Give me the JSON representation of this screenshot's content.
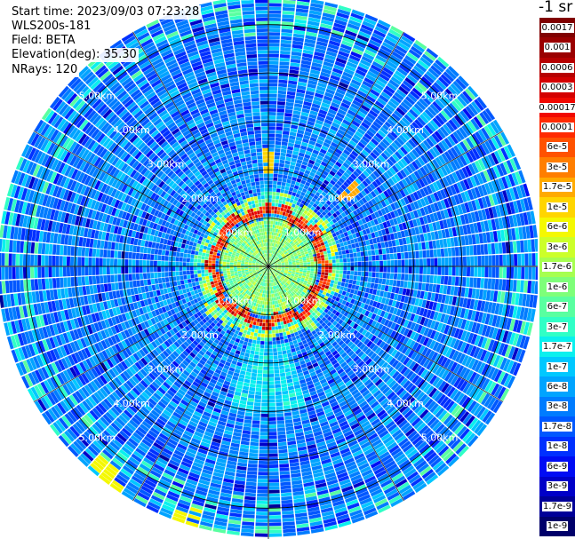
{
  "header": {
    "start_time": "Start time: 2023/09/03 07:23:28",
    "instrument": "WLS200s-181",
    "field": "Field: BETA",
    "elevation": "Elevation(deg): 35.30",
    "nrays": "NRays: 120"
  },
  "colorbar": {
    "unit_label": "-1 sr",
    "levels": [
      {
        "label": "0.0017",
        "color": "#800000"
      },
      {
        "label": "0.001",
        "color": "#9a0000"
      },
      {
        "label": "0.0006",
        "color": "#b60000"
      },
      {
        "label": "0.0003",
        "color": "#d40000"
      },
      {
        "label": "0.00017",
        "color": "#f10800"
      },
      {
        "label": "0.0001",
        "color": "#ff2a00"
      },
      {
        "label": "6e-5",
        "color": "#ff5200"
      },
      {
        "label": "3e-5",
        "color": "#ff7e00"
      },
      {
        "label": "1.7e-5",
        "color": "#ffaa00"
      },
      {
        "label": "1e-5",
        "color": "#ffd500"
      },
      {
        "label": "6e-6",
        "color": "#f4f802"
      },
      {
        "label": "3e-6",
        "color": "#ccff2a"
      },
      {
        "label": "1.7e-6",
        "color": "#a6ff50"
      },
      {
        "label": "1e-6",
        "color": "#7eff79"
      },
      {
        "label": "6e-7",
        "color": "#59ffa0"
      },
      {
        "label": "3e-7",
        "color": "#30ffc6"
      },
      {
        "label": "1.7e-7",
        "color": "#0af0ee"
      },
      {
        "label": "1e-7",
        "color": "#00c8ff"
      },
      {
        "label": "6e-8",
        "color": "#00a4ff"
      },
      {
        "label": "3e-8",
        "color": "#007cff"
      },
      {
        "label": "1.7e-8",
        "color": "#0058ff"
      },
      {
        "label": "1e-8",
        "color": "#0030ff"
      },
      {
        "label": "6e-9",
        "color": "#000cf4"
      },
      {
        "label": "3e-9",
        "color": "#0000c8"
      },
      {
        "label": "1.7e-9",
        "color": "#000098"
      },
      {
        "label": "1e-9",
        "color": "#00006a"
      }
    ]
  },
  "chart_data": {
    "type": "heatmap",
    "projection": "polar (PPI scan)",
    "field": "BETA",
    "unit": "sr^-1",
    "scale": "log",
    "elevation_deg": 35.3,
    "n_rays": 120,
    "range_rings_km": [
      1.0,
      2.0,
      3.0,
      4.0,
      5.0
    ],
    "ring_labels": [
      "1.00km",
      "2.00km",
      "3.00km",
      "4.00km",
      "5.00km"
    ],
    "max_range_km": 5.6,
    "azimuth_lines_deg": [
      0,
      30,
      60,
      90,
      120,
      150,
      180,
      210,
      240,
      270,
      300,
      330
    ],
    "observations": {
      "background_typical": "3e-8",
      "background_range": [
        "1e-8",
        "1e-7"
      ],
      "near_field_within_km": 1.0,
      "near_field_typical": "1e-6",
      "peak_ring_range_km": [
        1.05,
        1.25
      ],
      "peak_ring_value": "0.0001",
      "peak_ring_max": "0.0003",
      "weak_echo_sector_deg": [
        165,
        195
      ],
      "hotspots": [
        {
          "azimuth_deg": 0,
          "range_km": 2.2,
          "value": "1e-5"
        },
        {
          "azimuth_deg": 48,
          "range_km": 2.25,
          "value": "1.7e-5"
        },
        {
          "azimuth_deg": 198,
          "range_km": 5.5,
          "value": "6e-6"
        },
        {
          "azimuth_deg": 218,
          "range_km": 5.5,
          "value": "6e-6"
        }
      ]
    }
  }
}
